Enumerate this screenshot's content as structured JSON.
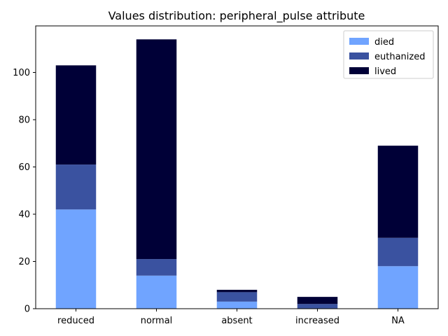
{
  "chart_data": {
    "type": "bar",
    "stacked": true,
    "title": "Values distribution: peripheral_pulse attribute",
    "xlabel": "",
    "ylabel": "",
    "categories": [
      "reduced",
      "normal",
      "absent",
      "increased",
      "NA"
    ],
    "series": [
      {
        "name": "died",
        "values": [
          42,
          14,
          3,
          0,
          18
        ],
        "color": "#70a4ff"
      },
      {
        "name": "euthanized",
        "values": [
          19,
          7,
          4,
          2,
          12
        ],
        "color": "#3a52a0"
      },
      {
        "name": "lived",
        "values": [
          42,
          93,
          1,
          3,
          39
        ],
        "color": "#000037"
      }
    ],
    "ylim": [
      0,
      119.7
    ],
    "yticks": [
      0,
      20,
      40,
      60,
      80,
      100
    ],
    "grid": false,
    "legend": "top-right"
  }
}
